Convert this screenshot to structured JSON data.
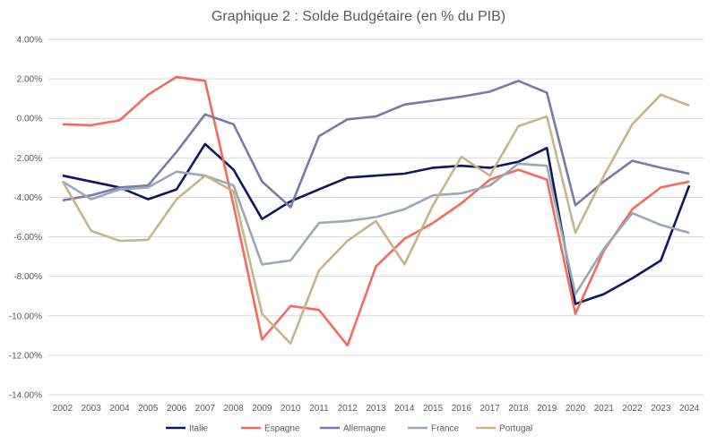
{
  "chart_data": {
    "type": "line",
    "title": "Graphique 2 : Solde Budgétaire (en % du PIB)",
    "xlabel": "",
    "ylabel": "",
    "x": [
      "2002",
      "2003",
      "2004",
      "2005",
      "2006",
      "2007",
      "2008",
      "2009",
      "2010",
      "2011",
      "2012",
      "2013",
      "2014",
      "2015",
      "2016",
      "2017",
      "2018",
      "2019",
      "2020",
      "2021",
      "2022",
      "2023",
      "2024"
    ],
    "ylim": [
      -14,
      4
    ],
    "y_ticks": [
      4,
      2,
      0,
      -2,
      -4,
      -6,
      -8,
      -10,
      -12,
      -14
    ],
    "y_tick_labels": [
      "4.00%",
      "2.00%",
      "0.00%",
      "-2.00%",
      "-4.00%",
      "-6.00%",
      "-8.00%",
      "-10.00%",
      "-12.00%",
      "-14.00%"
    ],
    "grid": "horizontal",
    "legend_position": "bottom",
    "series": [
      {
        "name": "Italie",
        "color": "#0d1a5c",
        "values": [
          -2.9,
          -3.2,
          -3.5,
          -4.1,
          -3.6,
          -1.3,
          -2.6,
          -5.1,
          -4.2,
          -3.6,
          -3.0,
          -2.9,
          -2.8,
          -2.5,
          -2.4,
          -2.5,
          -2.2,
          -1.5,
          -9.4,
          -8.9,
          -8.1,
          -7.2,
          -3.4
        ]
      },
      {
        "name": "Espagne",
        "color": "#f26b5f",
        "values": [
          -0.3,
          -0.35,
          -0.1,
          1.2,
          2.1,
          1.9,
          -4.4,
          -11.2,
          -9.5,
          -9.7,
          -11.5,
          -7.5,
          -6.1,
          -5.3,
          -4.3,
          -3.1,
          -2.6,
          -3.1,
          -9.9,
          -6.7,
          -4.6,
          -3.5,
          -3.2
        ]
      },
      {
        "name": "Allemagne",
        "color": "#7a7aa6",
        "values": [
          -4.15,
          -3.9,
          -3.5,
          -3.4,
          -1.7,
          0.2,
          -0.3,
          -3.2,
          -4.5,
          -0.9,
          -0.05,
          0.1,
          0.7,
          0.9,
          1.1,
          1.35,
          1.9,
          1.3,
          -4.4,
          -3.2,
          -2.15,
          -2.5,
          -2.8
        ]
      },
      {
        "name": "France",
        "color": "#9aa8b8",
        "values": [
          -3.2,
          -4.1,
          -3.6,
          -3.5,
          -2.7,
          -2.9,
          -3.4,
          -7.4,
          -7.2,
          -5.3,
          -5.2,
          -5.0,
          -4.6,
          -3.9,
          -3.8,
          -3.4,
          -2.3,
          -2.4,
          -8.9,
          -6.6,
          -4.8,
          -5.4,
          -5.8
        ]
      },
      {
        "name": "Portugal",
        "color": "#c9b48a",
        "values": [
          -3.2,
          -5.7,
          -6.2,
          -6.15,
          -4.1,
          -2.9,
          -3.7,
          -9.9,
          -11.4,
          -7.7,
          -6.2,
          -5.2,
          -7.4,
          -4.4,
          -1.95,
          -2.9,
          -0.4,
          0.1,
          -5.8,
          -2.9,
          -0.3,
          1.2,
          0.65
        ]
      }
    ]
  }
}
